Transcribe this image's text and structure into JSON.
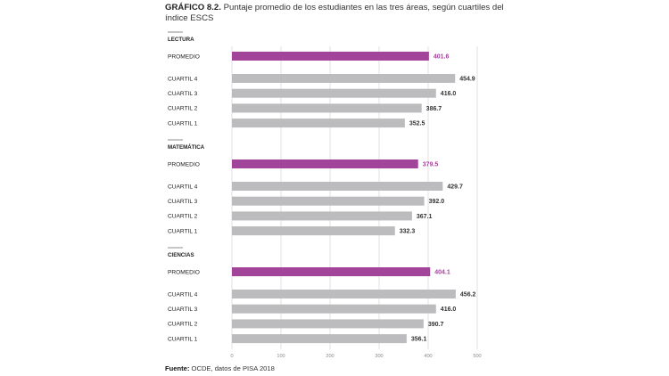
{
  "title": {
    "label": "GRÁFICO 8.2.",
    "text": "Puntaje promedio de los estudiantes en las tres áreas, según cuartiles del índice ESCS"
  },
  "source": {
    "label": "Fuente:",
    "text": "OCDE, datos de PISA 2018"
  },
  "colors": {
    "promedio": "#a1449a",
    "cuartil": "#bcbcbe",
    "promedio_label": "#a1449a",
    "cuartil_label": "#333333",
    "grid": "#d9d9d9"
  },
  "chart_data": {
    "type": "bar",
    "orientation": "horizontal",
    "xlim": [
      0,
      500
    ],
    "x_ticks": [
      0,
      100,
      200,
      300,
      400,
      500
    ],
    "grid": true,
    "groups": [
      {
        "name": "LECTURA",
        "bars": [
          {
            "label": "PROMEDIO",
            "value": 401.6,
            "value_label": "401.6",
            "kind": "promedio"
          },
          {
            "label": "CUARTIL 4",
            "value": 454.9,
            "value_label": "454.9",
            "kind": "cuartil"
          },
          {
            "label": "CUARTIL 3",
            "value": 416.0,
            "value_label": "416.0",
            "kind": "cuartil"
          },
          {
            "label": "CUARTIL 2",
            "value": 386.7,
            "value_label": "386.7",
            "kind": "cuartil"
          },
          {
            "label": "CUARTIL 1",
            "value": 352.5,
            "value_label": "352.5",
            "kind": "cuartil"
          }
        ]
      },
      {
        "name": "MATEMÁTICA",
        "bars": [
          {
            "label": "PROMEDIO",
            "value": 379.5,
            "value_label": "379.5",
            "kind": "promedio"
          },
          {
            "label": "CUARTIL 4",
            "value": 429.7,
            "value_label": "429.7",
            "kind": "cuartil"
          },
          {
            "label": "CUARTIL 3",
            "value": 392.0,
            "value_label": "392.0",
            "kind": "cuartil"
          },
          {
            "label": "CUARTIL 2",
            "value": 367.1,
            "value_label": "367.1",
            "kind": "cuartil"
          },
          {
            "label": "CUARTIL 1",
            "value": 332.3,
            "value_label": "332.3",
            "kind": "cuartil"
          }
        ]
      },
      {
        "name": "CIENCIAS",
        "bars": [
          {
            "label": "PROMEDIO",
            "value": 404.1,
            "value_label": "404.1",
            "kind": "promedio"
          },
          {
            "label": "CUARTIL 4",
            "value": 456.2,
            "value_label": "456.2",
            "kind": "cuartil"
          },
          {
            "label": "CUARTIL 3",
            "value": 416.0,
            "value_label": "416.0",
            "kind": "cuartil"
          },
          {
            "label": "CUARTIL 2",
            "value": 390.7,
            "value_label": "390.7",
            "kind": "cuartil"
          },
          {
            "label": "CUARTIL 1",
            "value": 356.1,
            "value_label": "356.1",
            "kind": "cuartil"
          }
        ]
      }
    ]
  }
}
